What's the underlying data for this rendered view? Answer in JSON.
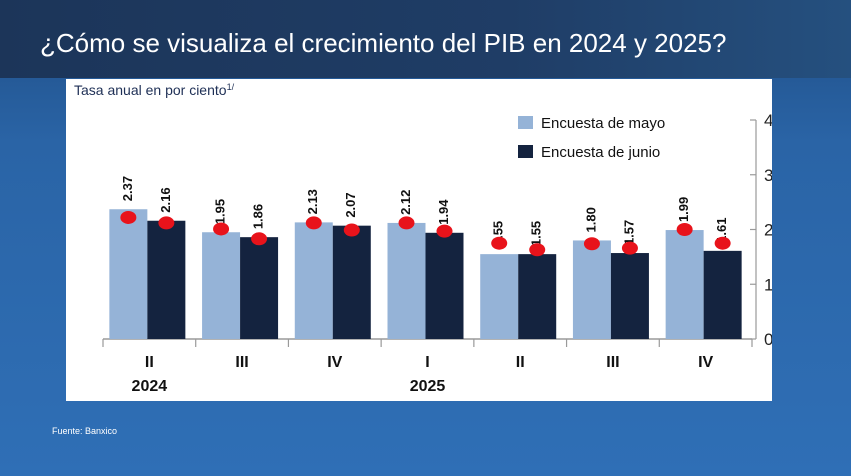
{
  "title": "¿Cómo se visualiza el crecimiento del PIB en 2024 y 2025?",
  "source": "Fuente: Banxico",
  "chart_data": {
    "type": "bar",
    "ylabel": "Tasa anual en por ciento",
    "ylabel_sup": "1/",
    "ylim": [
      0,
      4
    ],
    "yticks": [
      "0",
      "1",
      "2",
      "3",
      "4"
    ],
    "y_axis_side": "right",
    "grid": false,
    "legend_position": "top-right",
    "categories": [
      "II",
      "III",
      "IV",
      "I",
      "II",
      "III",
      "IV"
    ],
    "year_labels": [
      {
        "label": "2024",
        "category_index": 0
      },
      {
        "label": "2025",
        "category_index": 3
      }
    ],
    "series": [
      {
        "name": "Encuesta de mayo",
        "values": [
          2.37,
          1.95,
          2.13,
          2.12,
          1.55,
          1.8,
          1.99
        ],
        "labels": [
          "2.37",
          "1.95",
          "2.13",
          "2.12",
          "1.55",
          "1.80",
          "1.99"
        ],
        "color": "#95b3d7"
      },
      {
        "name": "Encuesta de junio",
        "values": [
          2.16,
          1.86,
          2.07,
          1.94,
          1.55,
          1.57,
          1.61
        ],
        "labels": [
          "2.16",
          "1.86",
          "2.07",
          "1.94",
          "1.55",
          "1.57",
          "1.61"
        ],
        "color": "#14233f"
      }
    ],
    "markers": {
      "color": "#e8131b",
      "values": [
        2.22,
        2.12,
        2.01,
        1.83,
        2.12,
        1.99,
        2.12,
        1.97,
        1.75,
        1.63,
        1.74,
        1.66,
        2.0,
        1.75
      ]
    }
  }
}
